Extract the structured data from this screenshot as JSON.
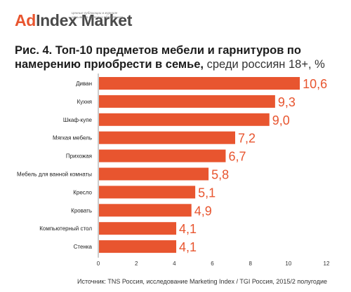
{
  "logo": {
    "ad": "Ad",
    "rest": "Index Market",
    "tagline": [
      "Ценные публикации в журнале",
      "отзывы на матовых облаблениях"
    ]
  },
  "title": {
    "main": "Рис. 4. Топ-10 предметов мебели и гарнитуров по намерению приобрести в семье,",
    "sub": "среди россиян 18+, %"
  },
  "source": "Источник: TNS Россия, исследование Marketing Index / TGI Россия, 2015/2 полугодие",
  "colors": {
    "bar": "#e8552f",
    "value_label": "#e8552f",
    "axis": "#9a9a9a"
  },
  "chart_data": {
    "type": "bar",
    "orientation": "horizontal",
    "categories": [
      "Диван",
      "Кухня",
      "Шкаф-купе",
      "Мягкая мебель",
      "Прихожая",
      "Мебель для ванной комнаты",
      "Кресло",
      "Кровать",
      "Компьютерный стол",
      "Стенка"
    ],
    "values": [
      10.6,
      9.3,
      9.0,
      7.2,
      6.7,
      5.8,
      5.1,
      4.9,
      4.1,
      4.1
    ],
    "value_labels": [
      "10,6",
      "9,3",
      "9,0",
      "7,2",
      "6,7",
      "5,8",
      "5,1",
      "4,9",
      "4,1",
      "4,1"
    ],
    "xlim": [
      0,
      12
    ],
    "xticks": [
      0,
      2,
      4,
      6,
      8,
      10,
      12
    ],
    "title": "Рис. 4. Топ-10 предметов мебели и гарнитуров по намерению приобрести в семье, среди россиян 18+, %",
    "grid": false,
    "legend": "none"
  }
}
